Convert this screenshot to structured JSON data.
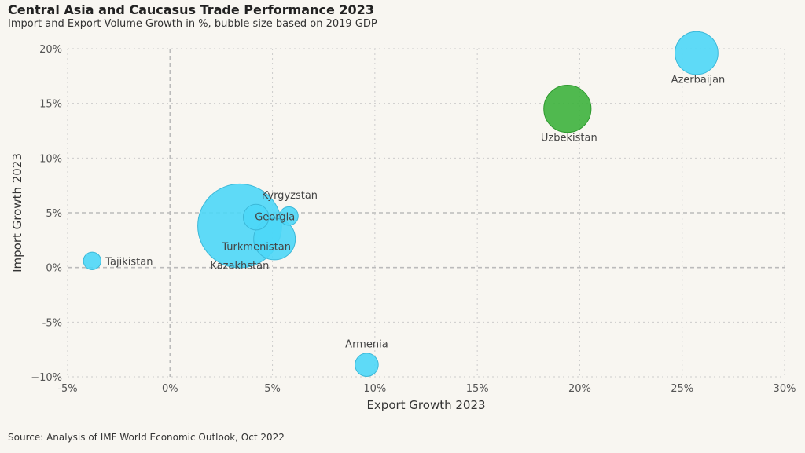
{
  "title": "Central Asia and Caucasus Trade Performance 2023",
  "subtitle": "Import and Export Volume Growth in %, bubble size based on 2019 GDP",
  "source": "Source: Analysis of IMF World Economic Outlook, Oct 2022",
  "colors": {
    "default_bubble": "#4dd7f7",
    "default_bubble_stroke": "#3cb8d8",
    "highlight_bubble": "#3db33d",
    "highlight_bubble_stroke": "#2e9a2e",
    "gridline": "#cccccc"
  },
  "chart_data": {
    "type": "scatter",
    "title": "Central Asia and Caucasus Trade Performance 2023",
    "subtitle": "Import and Export Volume Growth in %, bubble size based on 2019 GDP",
    "xlabel": "Export Growth 2023",
    "ylabel": "Import Growth 2023",
    "xlim": [
      -5,
      30
    ],
    "ylim": [
      -10,
      20
    ],
    "x_ticks": [
      -5,
      0,
      5,
      10,
      15,
      20,
      25,
      30
    ],
    "y_ticks": [
      -10,
      -5,
      0,
      5,
      10,
      15,
      20
    ],
    "x_tick_labels": [
      "-5%",
      "0%",
      "5%",
      "10%",
      "15%",
      "20%",
      "25%",
      "30%"
    ],
    "y_tick_labels": [
      "−10%",
      "-5%",
      "0%",
      "5%",
      "10%",
      "15%",
      "20%"
    ],
    "grid": "dotted",
    "points": [
      {
        "name": "Kazakhstan",
        "x": 3.4,
        "y": 3.8,
        "size": 182,
        "highlight": false
      },
      {
        "name": "Azerbaijan",
        "x": 25.7,
        "y": 19.6,
        "size": 48,
        "highlight": false
      },
      {
        "name": "Uzbekistan",
        "x": 19.4,
        "y": 14.5,
        "size": 58,
        "highlight": true
      },
      {
        "name": "Georgia",
        "x": 4.2,
        "y": 4.6,
        "size": 17,
        "highlight": false
      },
      {
        "name": "Turkmenistan",
        "x": 5.1,
        "y": 2.6,
        "size": 45,
        "highlight": false
      },
      {
        "name": "Kyrgyzstan",
        "x": 5.8,
        "y": 4.7,
        "size": 9,
        "highlight": false
      },
      {
        "name": "Armenia",
        "x": 9.6,
        "y": -8.9,
        "size": 14,
        "highlight": false
      },
      {
        "name": "Tajikistan",
        "x": -3.8,
        "y": 0.6,
        "size": 8,
        "highlight": false
      }
    ]
  }
}
